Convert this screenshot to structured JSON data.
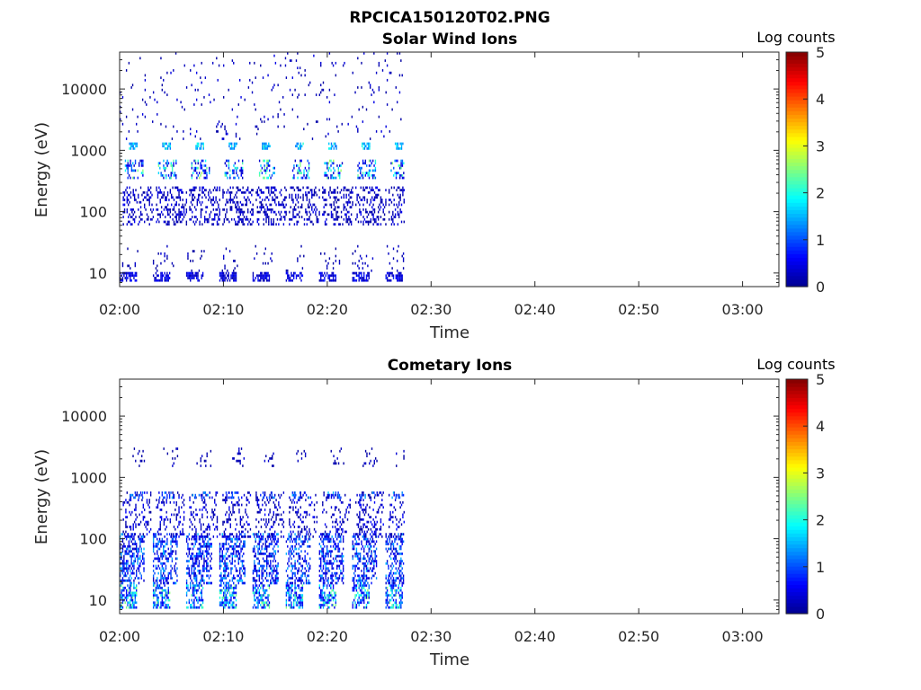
{
  "figure_title": "RPCICA150120T02.PNG",
  "colormap": [
    "#00008f",
    "#0000ff",
    "#0080ff",
    "#00ffff",
    "#80ff80",
    "#ffff00",
    "#ff8000",
    "#ff0000",
    "#800000"
  ],
  "chart_data": [
    {
      "type": "heatmap",
      "title": "Solar Wind Ions",
      "xlabel": "Time",
      "ylabel": "Energy (eV)",
      "x_ticks": [
        "02:00",
        "02:10",
        "02:20",
        "02:30",
        "02:40",
        "02:50",
        "03:00"
      ],
      "x_tick_minutes": [
        0,
        10,
        20,
        30,
        40,
        50,
        60
      ],
      "xlim_minutes": [
        0,
        63.5
      ],
      "y_scale": "log",
      "ylim": [
        6,
        40000
      ],
      "y_ticks": [
        10,
        100,
        1000,
        10000
      ],
      "y_tick_labels": [
        "10",
        "100",
        "1000",
        "10000"
      ],
      "colorbar": {
        "title": "Log counts",
        "range": [
          0,
          5
        ],
        "ticks": [
          "0",
          "1",
          "2",
          "3",
          "4",
          "5"
        ]
      },
      "data_end_minute": 27.4,
      "scan_start_minutes": [
        0.0,
        3.2,
        6.4,
        9.6,
        12.8,
        16.0,
        19.2,
        22.4,
        25.6
      ],
      "clusters": [
        {
          "t_offset": [
            0.0,
            1.6
          ],
          "e": [
            7,
            10
          ],
          "level": [
            0.2,
            0.8
          ],
          "density": 0.65
        },
        {
          "t_offset": [
            0.0,
            2.0
          ],
          "e": [
            10,
            28
          ],
          "level": [
            0.1,
            0.4
          ],
          "density": 0.08
        },
        {
          "t_offset": [
            0.3,
            3.2
          ],
          "e": [
            60,
            250
          ],
          "level": [
            0.1,
            0.6
          ],
          "density": 0.3
        },
        {
          "t_offset": [
            0.5,
            2.2
          ],
          "e": [
            350,
            700
          ],
          "level": [
            0.3,
            2.7
          ],
          "density": 0.35
        },
        {
          "t_offset": [
            0.9,
            1.7
          ],
          "e": [
            1000,
            1300
          ],
          "level": [
            1.2,
            2.2
          ],
          "density": 0.7
        },
        {
          "t_offset": [
            0.0,
            3.2
          ],
          "e": [
            1500,
            40000
          ],
          "level": [
            0.1,
            0.5
          ],
          "density": 0.03
        }
      ]
    },
    {
      "type": "heatmap",
      "title": "Cometary Ions",
      "xlabel": "Time",
      "ylabel": "Energy (eV)",
      "x_ticks": [
        "02:00",
        "02:10",
        "02:20",
        "02:30",
        "02:40",
        "02:50",
        "03:00"
      ],
      "x_tick_minutes": [
        0,
        10,
        20,
        30,
        40,
        50,
        60
      ],
      "xlim_minutes": [
        0,
        63.5
      ],
      "y_scale": "log",
      "ylim": [
        6,
        40000
      ],
      "y_ticks": [
        10,
        100,
        1000,
        10000
      ],
      "y_tick_labels": [
        "10",
        "100",
        "1000",
        "10000"
      ],
      "colorbar": {
        "title": "Log counts",
        "range": [
          0,
          5
        ],
        "ticks": [
          "0",
          "1",
          "2",
          "3",
          "4",
          "5"
        ]
      },
      "data_end_minute": 27.4,
      "scan_start_minutes": [
        0.0,
        3.2,
        6.4,
        9.6,
        12.8,
        16.0,
        19.2,
        22.4,
        25.6
      ],
      "clusters": [
        {
          "t_offset": [
            0.0,
            1.6
          ],
          "e": [
            7,
            18
          ],
          "level": [
            0.5,
            2.6
          ],
          "density": 0.6
        },
        {
          "t_offset": [
            0.0,
            2.4
          ],
          "e": [
            18,
            120
          ],
          "level": [
            0.3,
            1.6
          ],
          "density": 0.45
        },
        {
          "t_offset": [
            0.3,
            3.0
          ],
          "e": [
            100,
            600
          ],
          "level": [
            0.1,
            0.7
          ],
          "density": 0.22
        },
        {
          "t_offset": [
            0.6,
            2.2
          ],
          "e": [
            450,
            600
          ],
          "level": [
            0.8,
            1.6
          ],
          "density": 0.3
        },
        {
          "t_offset": [
            1.0,
            2.4
          ],
          "e": [
            1500,
            3000
          ],
          "level": [
            0.1,
            0.4
          ],
          "density": 0.12
        }
      ]
    }
  ]
}
